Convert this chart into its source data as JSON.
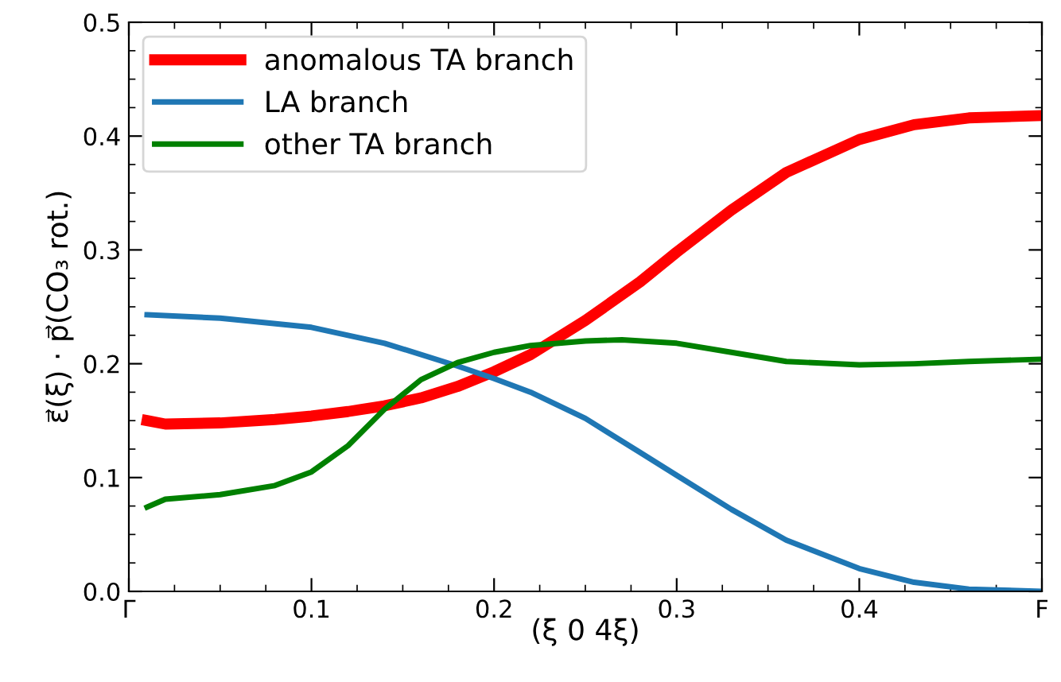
{
  "chart_data": {
    "type": "line",
    "xlabel": "(ξ 0 4ξ)",
    "ylabel": "ε⃗(ξ) · p⃗(CO₃ rot.)",
    "xlim": [
      0,
      0.5
    ],
    "ylim": [
      0,
      0.5
    ],
    "xticks": [
      {
        "value": 0,
        "label": "Γ"
      },
      0.1,
      0.2,
      0.3,
      0.4,
      {
        "value": 0.5,
        "label": "F"
      }
    ],
    "yticks": [
      {
        "value": 0,
        "label": "0.0"
      },
      0.1,
      0.2,
      0.3,
      0.4,
      0.5
    ],
    "grid": false,
    "legend": "top left",
    "marker": "none",
    "line_style": "solid",
    "series": [
      {
        "name": "anomalous TA branch",
        "color": "#ff0000",
        "x": [
          0.01,
          0.02,
          0.05,
          0.08,
          0.1,
          0.12,
          0.14,
          0.16,
          0.18,
          0.2,
          0.22,
          0.25,
          0.28,
          0.3,
          0.33,
          0.36,
          0.4,
          0.43,
          0.46,
          0.5
        ],
        "values": [
          0.15,
          0.147,
          0.148,
          0.151,
          0.154,
          0.158,
          0.163,
          0.17,
          0.18,
          0.193,
          0.208,
          0.238,
          0.272,
          0.298,
          0.335,
          0.368,
          0.397,
          0.41,
          0.416,
          0.418
        ]
      },
      {
        "name": "LA branch",
        "color": "#1f77b4",
        "x": [
          0.01,
          0.05,
          0.1,
          0.14,
          0.18,
          0.2,
          0.22,
          0.25,
          0.28,
          0.3,
          0.33,
          0.36,
          0.4,
          0.43,
          0.46,
          0.5
        ],
        "values": [
          0.243,
          0.24,
          0.232,
          0.218,
          0.198,
          0.187,
          0.175,
          0.152,
          0.122,
          0.102,
          0.072,
          0.045,
          0.02,
          0.008,
          0.002,
          0.0
        ]
      },
      {
        "name": "other TA branch",
        "color": "#008000",
        "x": [
          0.01,
          0.02,
          0.05,
          0.08,
          0.1,
          0.12,
          0.14,
          0.16,
          0.18,
          0.2,
          0.22,
          0.25,
          0.27,
          0.3,
          0.33,
          0.36,
          0.4,
          0.43,
          0.46,
          0.5
        ],
        "values": [
          0.074,
          0.081,
          0.085,
          0.093,
          0.105,
          0.128,
          0.16,
          0.186,
          0.201,
          0.21,
          0.216,
          0.22,
          0.221,
          0.218,
          0.21,
          0.202,
          0.199,
          0.2,
          0.202,
          0.204
        ]
      }
    ]
  }
}
